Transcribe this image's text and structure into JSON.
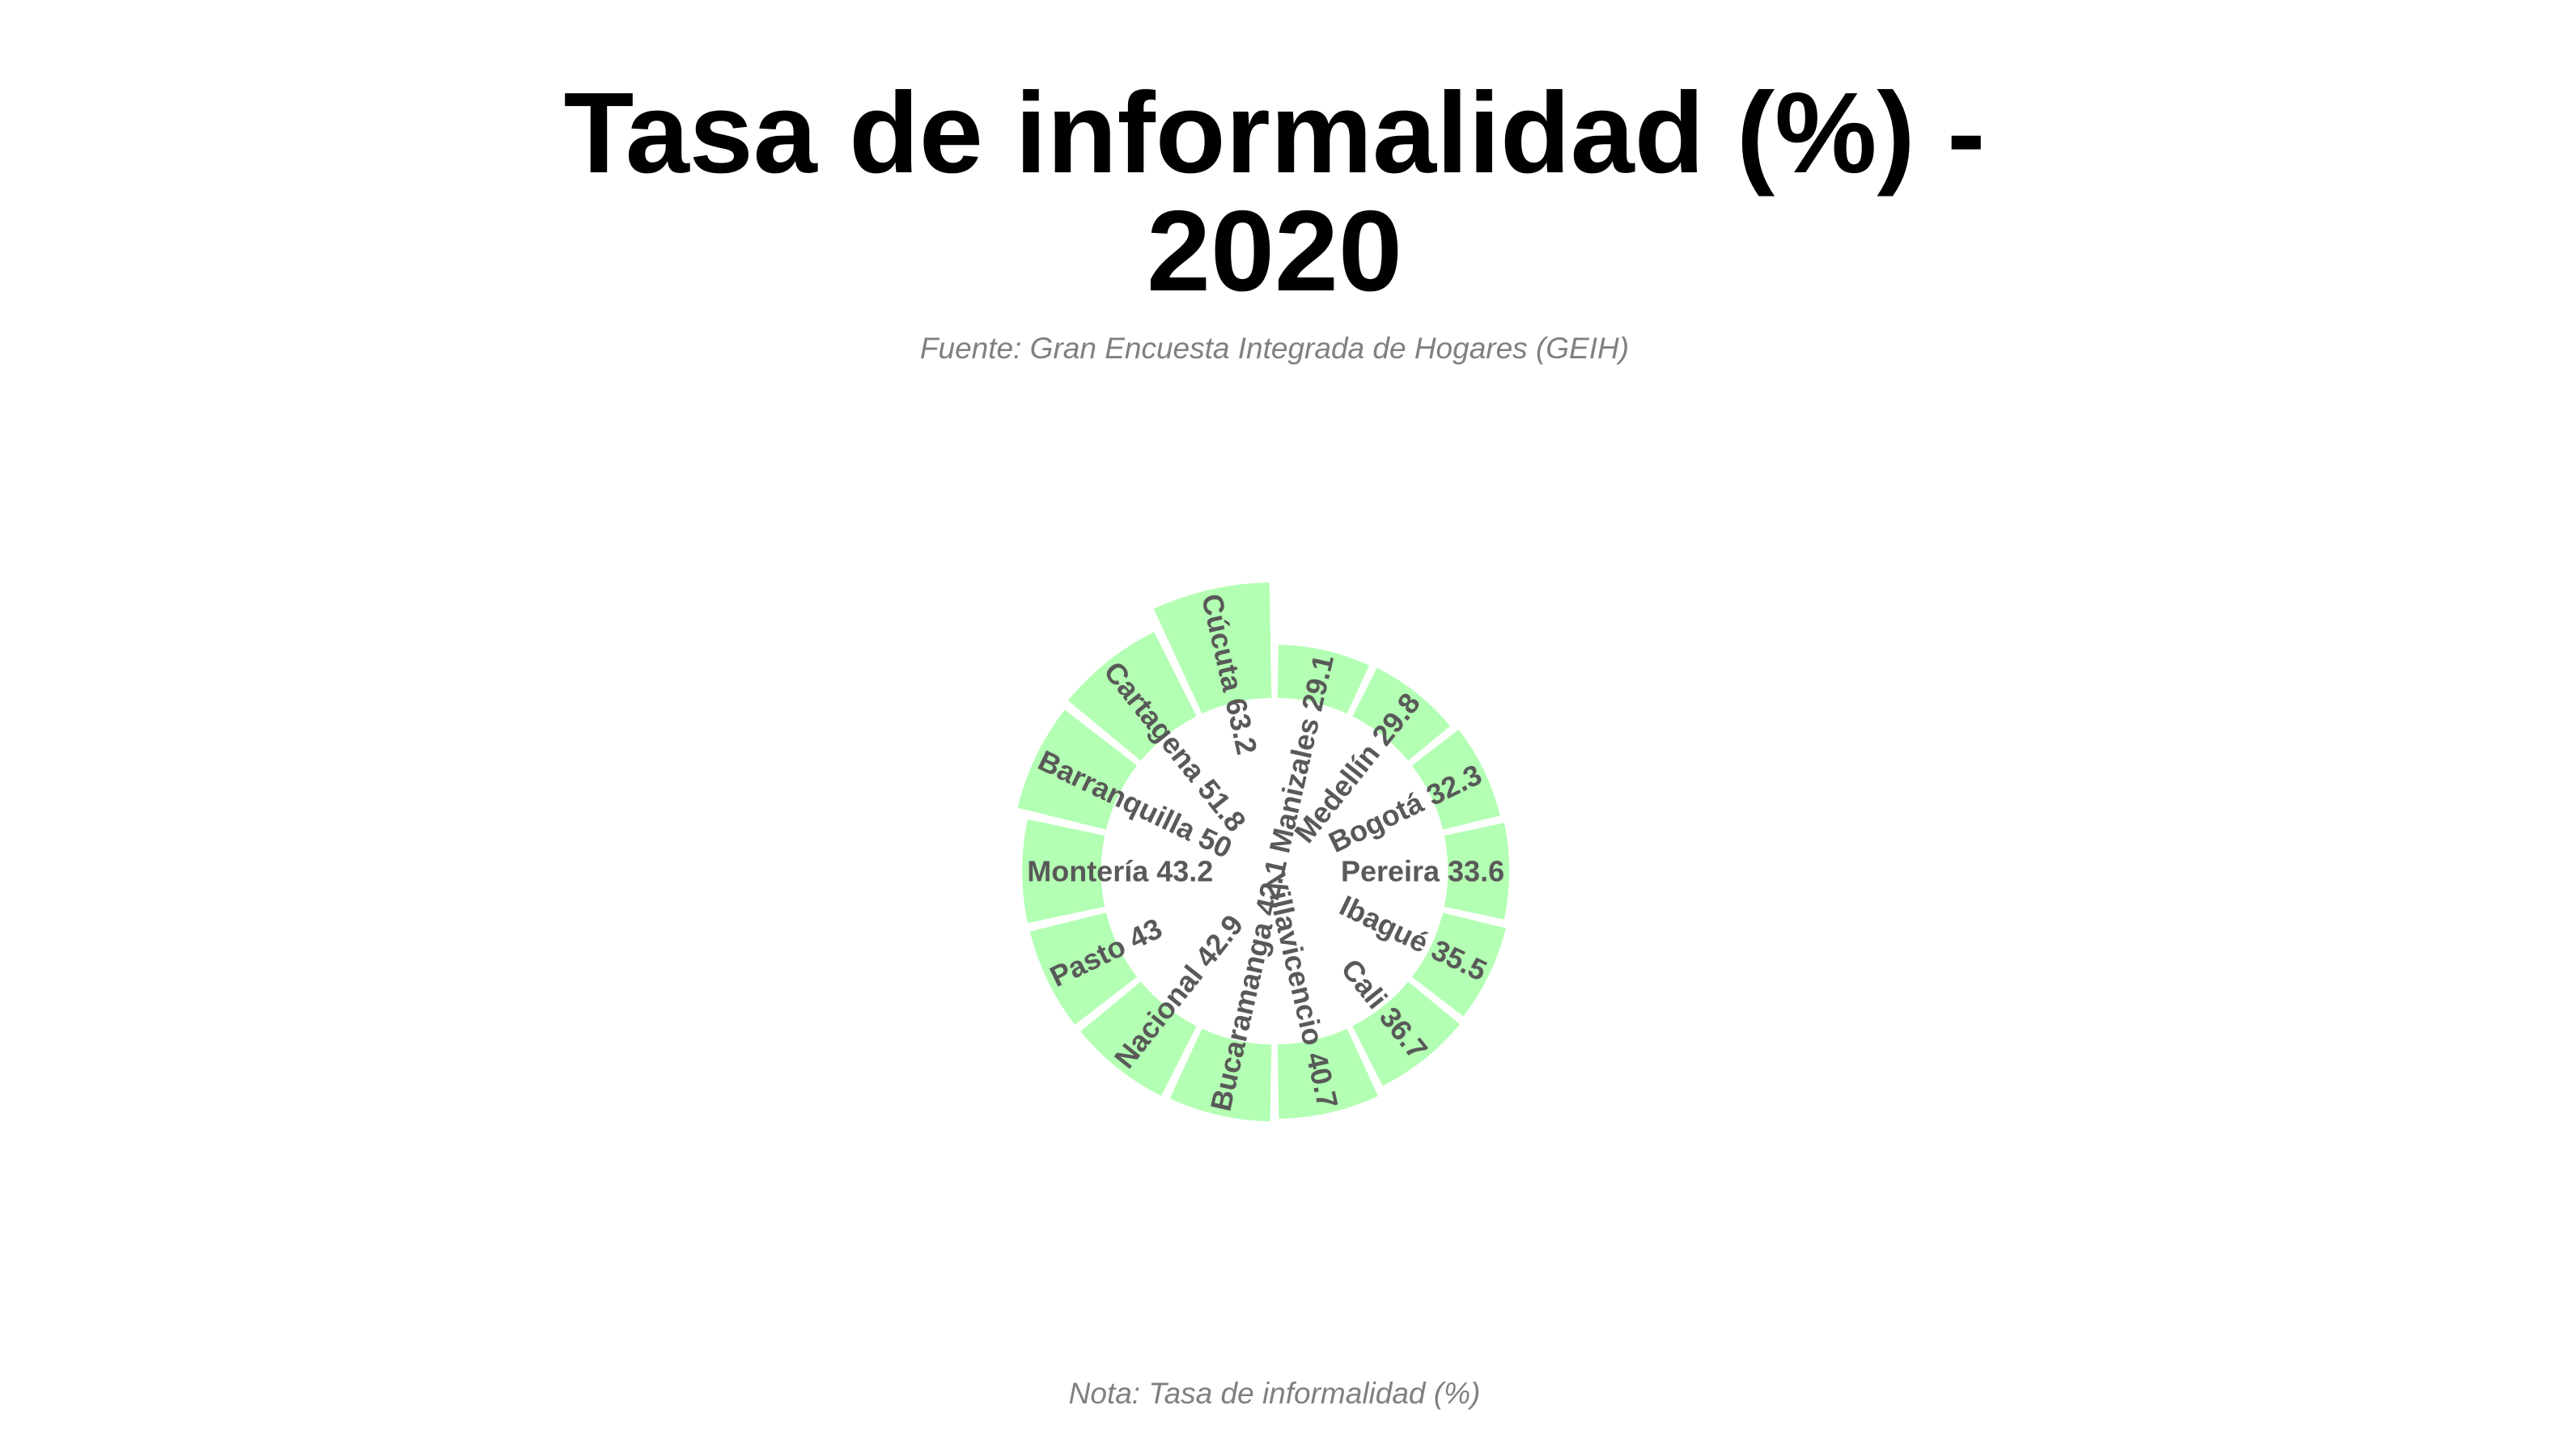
{
  "chart_data": {
    "type": "bar",
    "layout": "radial",
    "title": "Tasa de informalidad (%) -\n2020",
    "title_lines": [
      "Tasa de informalidad (%) -",
      "2020"
    ],
    "subtitle": "Fuente: Gran Encuesta Integrada de Hogares (GEIH)",
    "caption": "Nota: Tasa de informalidad (%)",
    "bar_color": "#b3ffb3",
    "label_color": "#595959",
    "grid": false,
    "legend": "none",
    "categories": [
      "Manizales",
      "Medellín",
      "Bogotá",
      "Pereira",
      "Ibagué",
      "Cali",
      "Villavicencio",
      "Bucaramanga",
      "Nacional",
      "Pasto",
      "Montería",
      "Barranquilla",
      "Cartagena",
      "Cúcuta"
    ],
    "values": [
      29.1,
      29.8,
      32.3,
      33.6,
      35.5,
      36.7,
      40.7,
      42.1,
      42.9,
      43.0,
      43.2,
      50.0,
      51.8,
      63.2
    ],
    "labels": [
      "Manizales 29.1",
      "Medellín 29.8",
      "Bogotá 32.3",
      "Pereira 33.6",
      "Ibagué 35.5",
      "Cali 36.7",
      "Villavicencio 40.7",
      "Bucaramanga 42.1",
      "Nacional 42.9",
      "Pasto 43",
      "Montería 43.2",
      "Barranquilla 50",
      "Cartagena 51.8",
      "Cúcuta 63.2"
    ]
  }
}
